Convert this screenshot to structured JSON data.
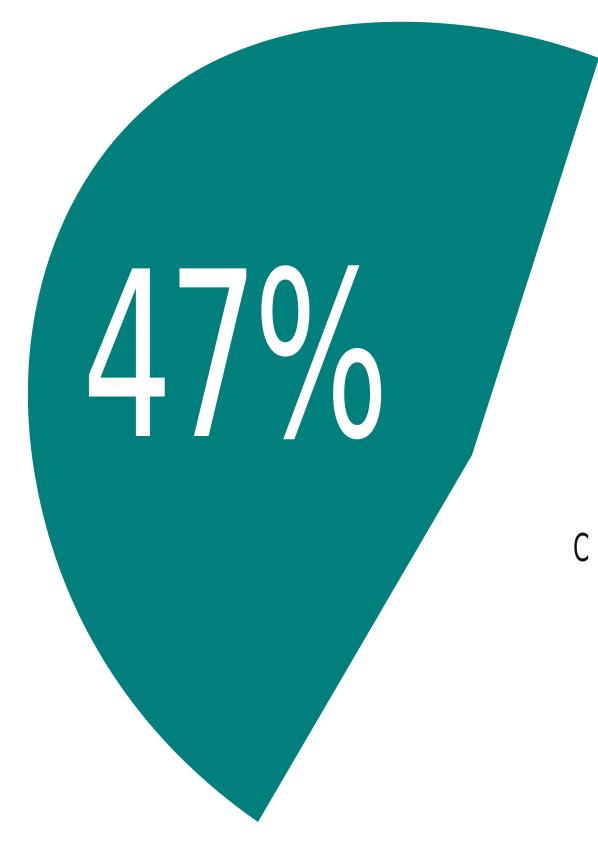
{
  "main": {
    "percentage_label": "47%",
    "edge_text": "C"
  },
  "colors": {
    "background": "#ffffff",
    "accent": "#007f7c",
    "percentage_text": "#ffffff",
    "edge_text": "#111111"
  }
}
